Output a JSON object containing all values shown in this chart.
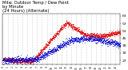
{
  "title": "Milw. Outdoor Temp / Dew Point\nby Minute\n(24 Hours) (Alternate)",
  "title_fontsize": 3.8,
  "bg_color": "#ffffff",
  "plot_bg_color": "#ffffff",
  "text_color": "#000000",
  "grid_color": "#aaaaaa",
  "temp_color": "#dd0000",
  "dew_color": "#0000cc",
  "ylim": [
    24,
    65
  ],
  "yticks": [
    27,
    33,
    39,
    45,
    51,
    57,
    63
  ],
  "ylabel_fontsize": 3.2,
  "xlabel_fontsize": 2.2,
  "num_points": 1440,
  "scatter_size": 0.25,
  "seed": 42
}
